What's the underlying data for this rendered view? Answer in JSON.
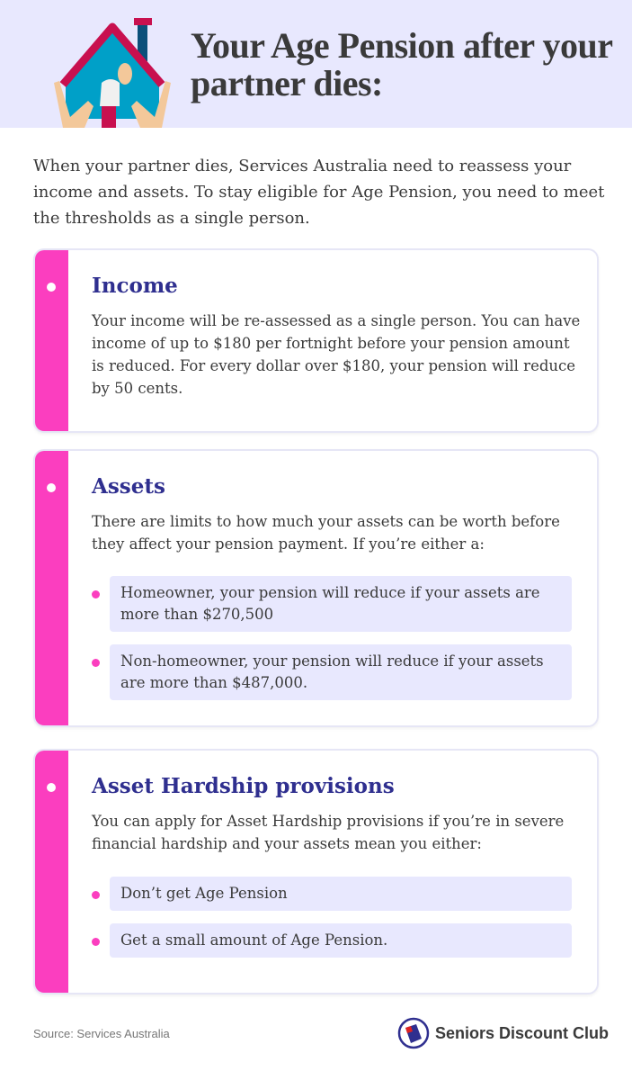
{
  "header": {
    "title": "Your Age Pension after your partner dies:",
    "icon": "house-hands-elderly-icon"
  },
  "intro": "When your partner dies, Services Australia need to reassess your income and assets. To stay eligible for Age Pension, you need to meet the thresholds as a single person.",
  "cards": [
    {
      "title": "Income",
      "text": "Your income will be re-assessed as a single person. You can have income of up to $180 per fortnight before your pension amount is reduced. For every dollar over $180, your pension will reduce by 50 cents.",
      "bullets": []
    },
    {
      "title": "Assets",
      "text": "There are limits to how much your assets can be worth before they affect your pension payment. If you’re either a:",
      "bullets": [
        "Homeowner, your pension will reduce if your assets are more than $270,500",
        "Non-homeowner, your pension will reduce if your assets are more than $487,000."
      ]
    },
    {
      "title": "Asset Hardship provisions",
      "text": "You can apply for Asset Hardship provisions if you’re in severe financial hardship and your assets mean you either:",
      "bullets": [
        "Don’t get Age Pension",
        "Get a small amount of Age Pension."
      ]
    }
  ],
  "footer": {
    "source": "Source: Services Australia",
    "brand": "Seniors Discount Club"
  },
  "colors": {
    "accent": "#fb3ebf",
    "heading": "#2f2f8f",
    "panel": "#e8e8fe"
  }
}
